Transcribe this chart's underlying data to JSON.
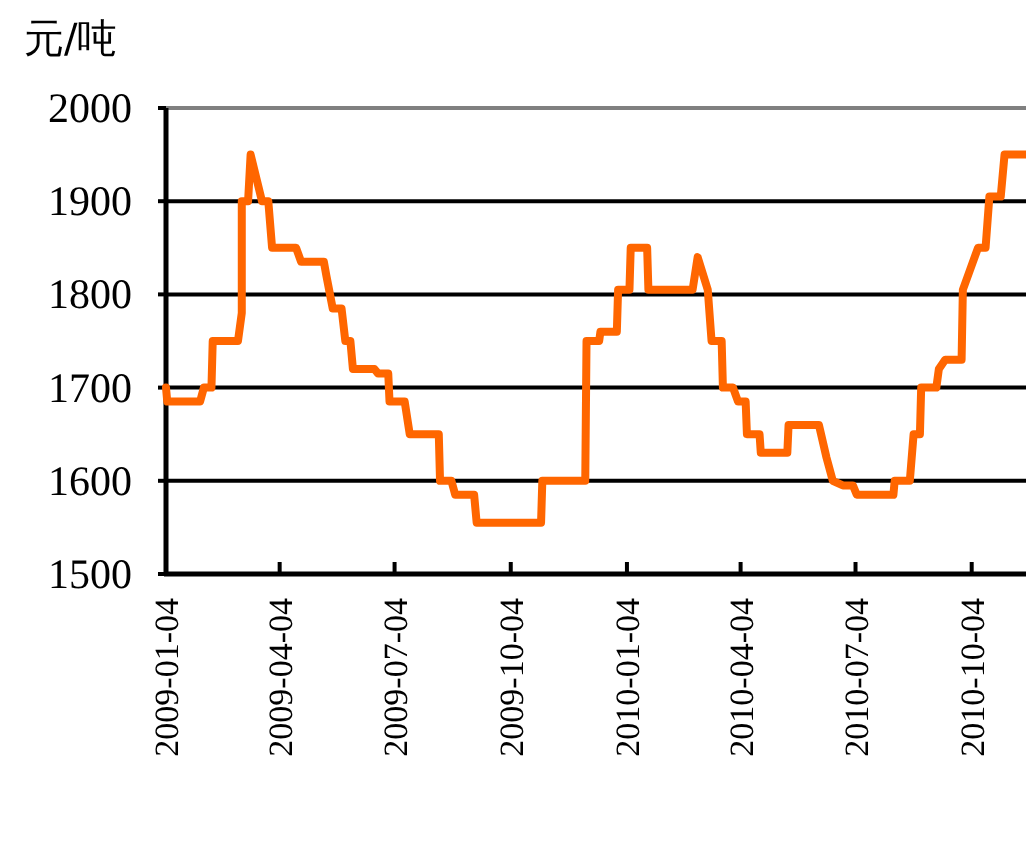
{
  "chart_data": {
    "type": "line",
    "ylabel": "元/吨",
    "x": [
      "2009-01-04",
      "2009-01-05",
      "2009-01-31",
      "2009-02-03",
      "2009-02-09",
      "2009-02-10",
      "2009-03-02",
      "2009-03-05",
      "2009-03-05",
      "2009-03-10",
      "2009-03-12",
      "2009-03-21",
      "2009-03-26",
      "2009-03-29",
      "2009-04-17",
      "2009-04-21",
      "2009-05-09",
      "2009-05-11",
      "2009-05-16",
      "2009-05-23",
      "2009-05-26",
      "2009-05-30",
      "2009-06-01",
      "2009-06-18",
      "2009-06-21",
      "2009-06-29",
      "2009-06-30",
      "2009-07-12",
      "2009-07-16",
      "2009-08-08",
      "2009-08-09",
      "2009-08-18",
      "2009-08-21",
      "2009-09-05",
      "2009-09-07",
      "2009-10-28",
      "2009-10-29",
      "2009-12-02",
      "2009-12-03",
      "2009-12-13",
      "2009-12-14",
      "2009-12-27",
      "2009-12-28",
      "2010-01-06",
      "2010-01-07",
      "2010-01-20",
      "2010-01-21",
      "2010-02-25",
      "2010-03-01",
      "2010-03-09",
      "2010-03-12",
      "2010-03-20",
      "2010-03-21",
      "2010-03-29",
      "2010-04-02",
      "2010-04-08",
      "2010-04-09",
      "2010-04-19",
      "2010-04-20",
      "2010-05-11",
      "2010-05-12",
      "2010-06-05",
      "2010-06-11",
      "2010-06-16",
      "2010-06-24",
      "2010-07-02",
      "2010-07-05",
      "2010-08-03",
      "2010-08-04",
      "2010-08-16",
      "2010-08-19",
      "2010-08-24",
      "2010-08-25",
      "2010-09-06",
      "2010-09-08",
      "2010-09-13",
      "2010-09-26",
      "2010-09-27",
      "2010-10-09",
      "2010-10-15",
      "2010-10-18",
      "2010-10-27",
      "2010-10-30",
      "2010-11-16"
    ],
    "series": [
      {
        "color": "#ff6600",
        "values": [
          1700,
          1685,
          1685,
          1700,
          1700,
          1750,
          1750,
          1780,
          1900,
          1900,
          1950,
          1900,
          1900,
          1850,
          1850,
          1835,
          1835,
          1820,
          1785,
          1785,
          1750,
          1750,
          1720,
          1720,
          1715,
          1715,
          1685,
          1685,
          1650,
          1650,
          1600,
          1600,
          1585,
          1585,
          1555,
          1555,
          1600,
          1600,
          1750,
          1750,
          1760,
          1760,
          1805,
          1805,
          1850,
          1850,
          1805,
          1805,
          1840,
          1805,
          1750,
          1750,
          1700,
          1700,
          1685,
          1685,
          1650,
          1650,
          1630,
          1630,
          1660,
          1660,
          1625,
          1600,
          1595,
          1595,
          1585,
          1585,
          1600,
          1600,
          1650,
          1650,
          1700,
          1700,
          1720,
          1730,
          1730,
          1805,
          1850,
          1850,
          1905,
          1905,
          1950,
          1950
        ]
      }
    ],
    "xlim": [
      "2009-01-04",
      "2010-11-16"
    ],
    "xticks": [
      {
        "value": "2009-01-04",
        "label": "2009-01-04"
      },
      {
        "value": "2009-04-04",
        "label": "2009-04-04"
      },
      {
        "value": "2009-07-04",
        "label": "2009-07-04"
      },
      {
        "value": "2009-10-04",
        "label": "2009-10-04"
      },
      {
        "value": "2010-01-04",
        "label": "2010-01-04"
      },
      {
        "value": "2010-04-04",
        "label": "2010-04-04"
      },
      {
        "value": "2010-07-04",
        "label": "2010-07-04"
      },
      {
        "value": "2010-10-04",
        "label": "2010-10-04"
      }
    ],
    "ylim": [
      1500,
      2000
    ],
    "yticks": [
      1500,
      1600,
      1700,
      1800,
      1900,
      2000
    ],
    "grid": "y",
    "line_style": "solid"
  }
}
